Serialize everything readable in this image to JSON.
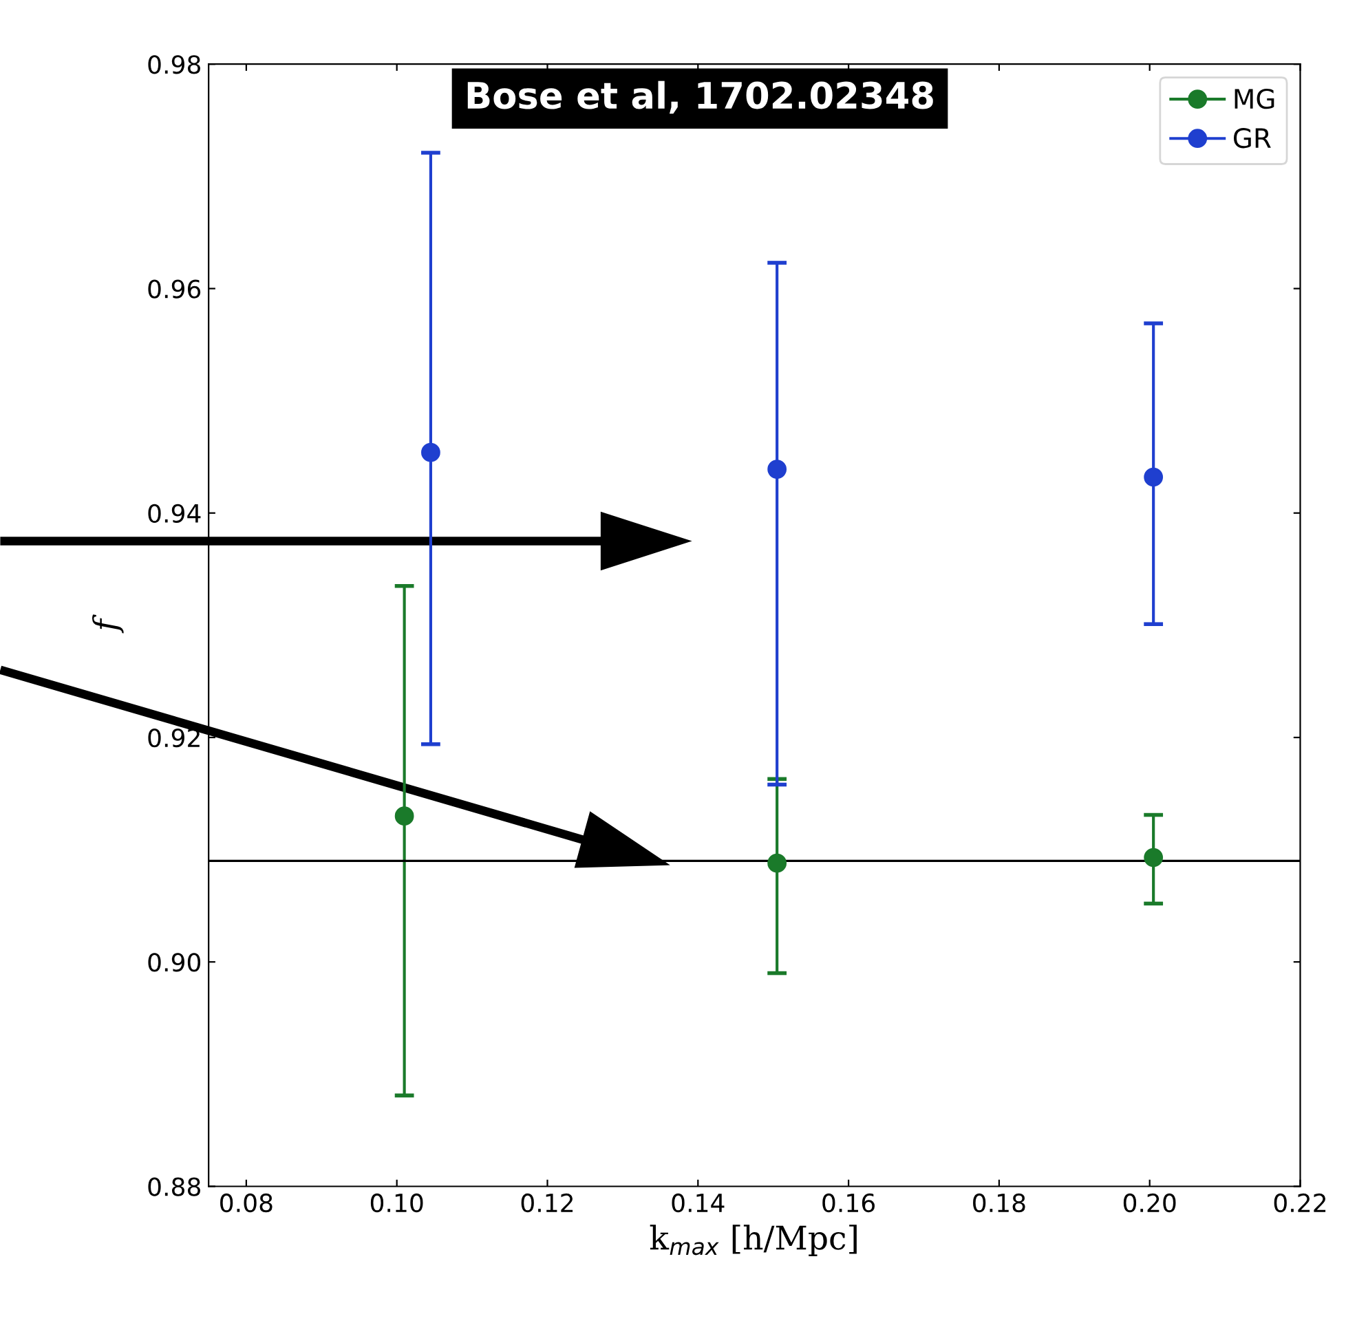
{
  "chart_data": {
    "type": "scatter",
    "xlabel": "k$_{max}$ [h/Mpc]",
    "ylabel": "f",
    "annotations": [
      "Bose et al, 1702.02348"
    ],
    "series": [
      {
        "name": "MG",
        "color": "#1a7a2a",
        "x": [
          0.101,
          0.1505,
          0.2005
        ],
        "values": [
          0.913,
          0.9088,
          0.9093
        ],
        "errors": [
          [
            0.8881,
            0.9335
          ],
          [
            0.899,
            0.9163
          ],
          [
            0.9052,
            0.9131
          ]
        ]
      },
      {
        "name": "GR",
        "color": "#1f3fcf",
        "x": [
          0.1045,
          0.1505,
          0.2005
        ],
        "values": [
          0.9454,
          0.9439,
          0.9432
        ],
        "errors": [
          [
            0.9194,
            0.9721
          ],
          [
            0.9158,
            0.9623
          ],
          [
            0.9301,
            0.9569
          ]
        ]
      }
    ],
    "ref_lines": [
      {
        "axis": "y",
        "value": 0.909,
        "color": "#000000"
      }
    ],
    "xlim": [
      0.075,
      0.22
    ],
    "ylim": [
      0.88,
      0.98
    ],
    "xticks": [
      0.08,
      {
        "value": 0.1,
        "label": "0.10"
      },
      0.12,
      0.14,
      0.16,
      0.18,
      {
        "value": 0.2,
        "label": "0.20"
      },
      0.22
    ],
    "yticks": [
      0.88,
      {
        "value": 0.9,
        "label": "0.90"
      },
      0.92,
      0.94,
      0.96,
      0.98
    ],
    "marker": "circle",
    "legend": "top right",
    "grid": false
  }
}
